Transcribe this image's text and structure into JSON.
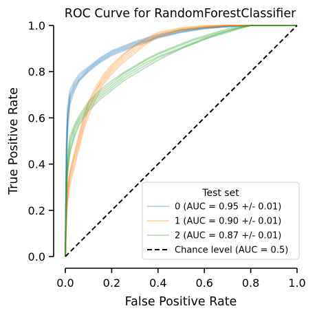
{
  "chart_data": {
    "type": "line",
    "title": "ROC Curve for RandomForestClassifier",
    "xlabel": "False Positive Rate",
    "ylabel": "True Positive Rate",
    "xlim": [
      0.0,
      1.0
    ],
    "ylim": [
      0.0,
      1.0
    ],
    "xticks": [
      "0.0",
      "0.2",
      "0.4",
      "0.6",
      "0.8",
      "1.0"
    ],
    "yticks": [
      "0.0",
      "0.2",
      "0.4",
      "0.6",
      "0.8",
      "1.0"
    ],
    "grid": false,
    "legend": {
      "title": "Test set",
      "placement": "lower-right"
    },
    "series": [
      {
        "name": "0 (AUC = 0.95 +/- 0.01)",
        "color": "#1f77b4",
        "alpha": 0.3,
        "folds": [
          {
            "x": [
              0,
              0.005,
              0.01,
              0.02,
              0.04,
              0.06,
              0.1,
              0.15,
              0.2,
              0.3,
              0.4,
              0.5,
              0.6,
              0.7,
              0.8,
              0.9,
              1.0
            ],
            "y": [
              0,
              0.52,
              0.65,
              0.72,
              0.76,
              0.79,
              0.82,
              0.86,
              0.89,
              0.93,
              0.96,
              0.98,
              0.99,
              0.995,
              1.0,
              1.0,
              1.0
            ]
          },
          {
            "x": [
              0,
              0.005,
              0.01,
              0.02,
              0.04,
              0.06,
              0.1,
              0.15,
              0.2,
              0.3,
              0.4,
              0.5,
              0.6,
              0.7,
              0.8,
              0.9,
              1.0
            ],
            "y": [
              0,
              0.45,
              0.6,
              0.69,
              0.74,
              0.77,
              0.81,
              0.85,
              0.88,
              0.92,
              0.95,
              0.975,
              0.99,
              0.995,
              1.0,
              1.0,
              1.0
            ]
          },
          {
            "x": [
              0,
              0.005,
              0.01,
              0.02,
              0.04,
              0.06,
              0.1,
              0.15,
              0.2,
              0.3,
              0.4,
              0.5,
              0.6,
              0.7,
              0.8,
              0.9,
              1.0
            ],
            "y": [
              0,
              0.4,
              0.55,
              0.66,
              0.72,
              0.76,
              0.8,
              0.84,
              0.87,
              0.91,
              0.945,
              0.97,
              0.985,
              0.995,
              1.0,
              1.0,
              1.0
            ]
          },
          {
            "x": [
              0,
              0.005,
              0.01,
              0.02,
              0.04,
              0.06,
              0.1,
              0.15,
              0.2,
              0.3,
              0.4,
              0.5,
              0.6,
              0.7,
              0.8,
              0.9,
              1.0
            ],
            "y": [
              0,
              0.48,
              0.62,
              0.7,
              0.75,
              0.78,
              0.815,
              0.855,
              0.885,
              0.925,
              0.955,
              0.98,
              0.99,
              1.0,
              1.0,
              1.0,
              1.0
            ]
          },
          {
            "x": [
              0,
              0.005,
              0.01,
              0.02,
              0.04,
              0.06,
              0.1,
              0.15,
              0.2,
              0.3,
              0.4,
              0.5,
              0.6,
              0.7,
              0.8,
              0.9,
              1.0
            ],
            "y": [
              0,
              0.42,
              0.58,
              0.68,
              0.73,
              0.765,
              0.805,
              0.845,
              0.875,
              0.915,
              0.95,
              0.972,
              0.988,
              0.995,
              1.0,
              1.0,
              1.0
            ]
          }
        ]
      },
      {
        "name": "1 (AUC = 0.90 +/- 0.01)",
        "color": "#ff7f0e",
        "alpha": 0.3,
        "folds": [
          {
            "x": [
              0,
              0.005,
              0.01,
              0.02,
              0.04,
              0.06,
              0.08,
              0.1,
              0.13,
              0.16,
              0.2,
              0.25,
              0.3,
              0.35,
              0.4,
              0.5,
              0.6,
              0.7,
              0.8,
              0.9,
              1.0
            ],
            "y": [
              0,
              0.22,
              0.3,
              0.36,
              0.44,
              0.52,
              0.6,
              0.66,
              0.72,
              0.76,
              0.81,
              0.86,
              0.9,
              0.93,
              0.96,
              0.985,
              0.995,
              1.0,
              1.0,
              1.0,
              1.0
            ]
          },
          {
            "x": [
              0,
              0.005,
              0.01,
              0.02,
              0.04,
              0.06,
              0.08,
              0.1,
              0.13,
              0.16,
              0.2,
              0.25,
              0.3,
              0.35,
              0.4,
              0.5,
              0.6,
              0.7,
              0.8,
              0.9,
              1.0
            ],
            "y": [
              0,
              0.18,
              0.26,
              0.33,
              0.41,
              0.49,
              0.57,
              0.63,
              0.7,
              0.75,
              0.8,
              0.85,
              0.89,
              0.925,
              0.955,
              0.98,
              0.995,
              1.0,
              1.0,
              1.0,
              1.0
            ]
          },
          {
            "x": [
              0,
              0.005,
              0.01,
              0.02,
              0.04,
              0.06,
              0.08,
              0.1,
              0.13,
              0.16,
              0.2,
              0.25,
              0.3,
              0.35,
              0.4,
              0.5,
              0.6,
              0.7,
              0.8,
              0.9,
              1.0
            ],
            "y": [
              0,
              0.2,
              0.28,
              0.35,
              0.43,
              0.5,
              0.58,
              0.64,
              0.71,
              0.77,
              0.82,
              0.87,
              0.91,
              0.94,
              0.965,
              0.985,
              0.995,
              1.0,
              1.0,
              1.0,
              1.0
            ]
          },
          {
            "x": [
              0,
              0.005,
              0.01,
              0.02,
              0.04,
              0.06,
              0.08,
              0.1,
              0.13,
              0.16,
              0.2,
              0.25,
              0.3,
              0.35,
              0.4,
              0.5,
              0.6,
              0.7,
              0.8,
              0.9,
              1.0
            ],
            "y": [
              0,
              0.16,
              0.24,
              0.31,
              0.39,
              0.47,
              0.55,
              0.61,
              0.68,
              0.74,
              0.79,
              0.84,
              0.88,
              0.92,
              0.95,
              0.98,
              0.99,
              1.0,
              1.0,
              1.0,
              1.0
            ]
          },
          {
            "x": [
              0,
              0.005,
              0.01,
              0.02,
              0.04,
              0.06,
              0.08,
              0.1,
              0.13,
              0.16,
              0.2,
              0.25,
              0.3,
              0.35,
              0.4,
              0.5,
              0.6,
              0.7,
              0.8,
              0.9,
              1.0
            ],
            "y": [
              0,
              0.21,
              0.29,
              0.37,
              0.45,
              0.53,
              0.61,
              0.67,
              0.73,
              0.78,
              0.83,
              0.875,
              0.915,
              0.945,
              0.97,
              0.99,
              1.0,
              1.0,
              1.0,
              1.0,
              1.0
            ]
          }
        ]
      },
      {
        "name": "2 (AUC = 0.87 +/- 0.01)",
        "color": "#2ca02c",
        "alpha": 0.3,
        "folds": [
          {
            "x": [
              0,
              0.005,
              0.01,
              0.02,
              0.04,
              0.06,
              0.1,
              0.15,
              0.2,
              0.25,
              0.3,
              0.35,
              0.4,
              0.45,
              0.5,
              0.55,
              0.6,
              0.65,
              0.7,
              0.75,
              0.8,
              0.9,
              1.0
            ],
            "y": [
              0,
              0.3,
              0.4,
              0.48,
              0.55,
              0.59,
              0.65,
              0.7,
              0.74,
              0.78,
              0.81,
              0.84,
              0.865,
              0.885,
              0.905,
              0.925,
              0.945,
              0.96,
              0.975,
              0.99,
              1.0,
              1.0,
              1.0
            ]
          },
          {
            "x": [
              0,
              0.005,
              0.01,
              0.02,
              0.04,
              0.06,
              0.1,
              0.15,
              0.2,
              0.25,
              0.3,
              0.35,
              0.4,
              0.45,
              0.5,
              0.55,
              0.6,
              0.65,
              0.7,
              0.75,
              0.8,
              0.9,
              1.0
            ],
            "y": [
              0,
              0.26,
              0.36,
              0.45,
              0.52,
              0.57,
              0.63,
              0.68,
              0.72,
              0.76,
              0.79,
              0.82,
              0.85,
              0.875,
              0.9,
              0.92,
              0.94,
              0.955,
              0.97,
              0.985,
              1.0,
              1.0,
              1.0
            ]
          },
          {
            "x": [
              0,
              0.005,
              0.01,
              0.02,
              0.04,
              0.06,
              0.1,
              0.15,
              0.2,
              0.25,
              0.3,
              0.35,
              0.4,
              0.45,
              0.5,
              0.55,
              0.6,
              0.65,
              0.7,
              0.75,
              0.8,
              0.9,
              1.0
            ],
            "y": [
              0,
              0.32,
              0.42,
              0.5,
              0.56,
              0.6,
              0.66,
              0.71,
              0.75,
              0.79,
              0.82,
              0.85,
              0.875,
              0.895,
              0.915,
              0.935,
              0.95,
              0.965,
              0.98,
              0.99,
              1.0,
              1.0,
              1.0
            ]
          },
          {
            "x": [
              0,
              0.005,
              0.01,
              0.02,
              0.04,
              0.06,
              0.1,
              0.15,
              0.2,
              0.25,
              0.3,
              0.35,
              0.4,
              0.45,
              0.5,
              0.55,
              0.6,
              0.65,
              0.7,
              0.75,
              0.8,
              0.9,
              1.0
            ],
            "y": [
              0,
              0.28,
              0.38,
              0.46,
              0.53,
              0.58,
              0.64,
              0.69,
              0.73,
              0.77,
              0.8,
              0.83,
              0.86,
              0.88,
              0.9,
              0.92,
              0.94,
              0.96,
              0.975,
              0.99,
              1.0,
              1.0,
              1.0
            ]
          },
          {
            "x": [
              0,
              0.005,
              0.01,
              0.02,
              0.04,
              0.06,
              0.1,
              0.15,
              0.2,
              0.25,
              0.3,
              0.35,
              0.4,
              0.45,
              0.5,
              0.55,
              0.6,
              0.65,
              0.7,
              0.75,
              0.8,
              0.9,
              1.0
            ],
            "y": [
              0,
              0.34,
              0.44,
              0.52,
              0.57,
              0.61,
              0.67,
              0.72,
              0.76,
              0.795,
              0.825,
              0.855,
              0.88,
              0.9,
              0.92,
              0.94,
              0.955,
              0.97,
              0.985,
              0.995,
              1.0,
              1.0,
              1.0
            ]
          }
        ]
      }
    ],
    "reference_line": {
      "name": "Chance level (AUC = 0.5)",
      "color": "#000000",
      "style": "dashed",
      "x": [
        0,
        1
      ],
      "y": [
        0,
        1
      ]
    }
  }
}
